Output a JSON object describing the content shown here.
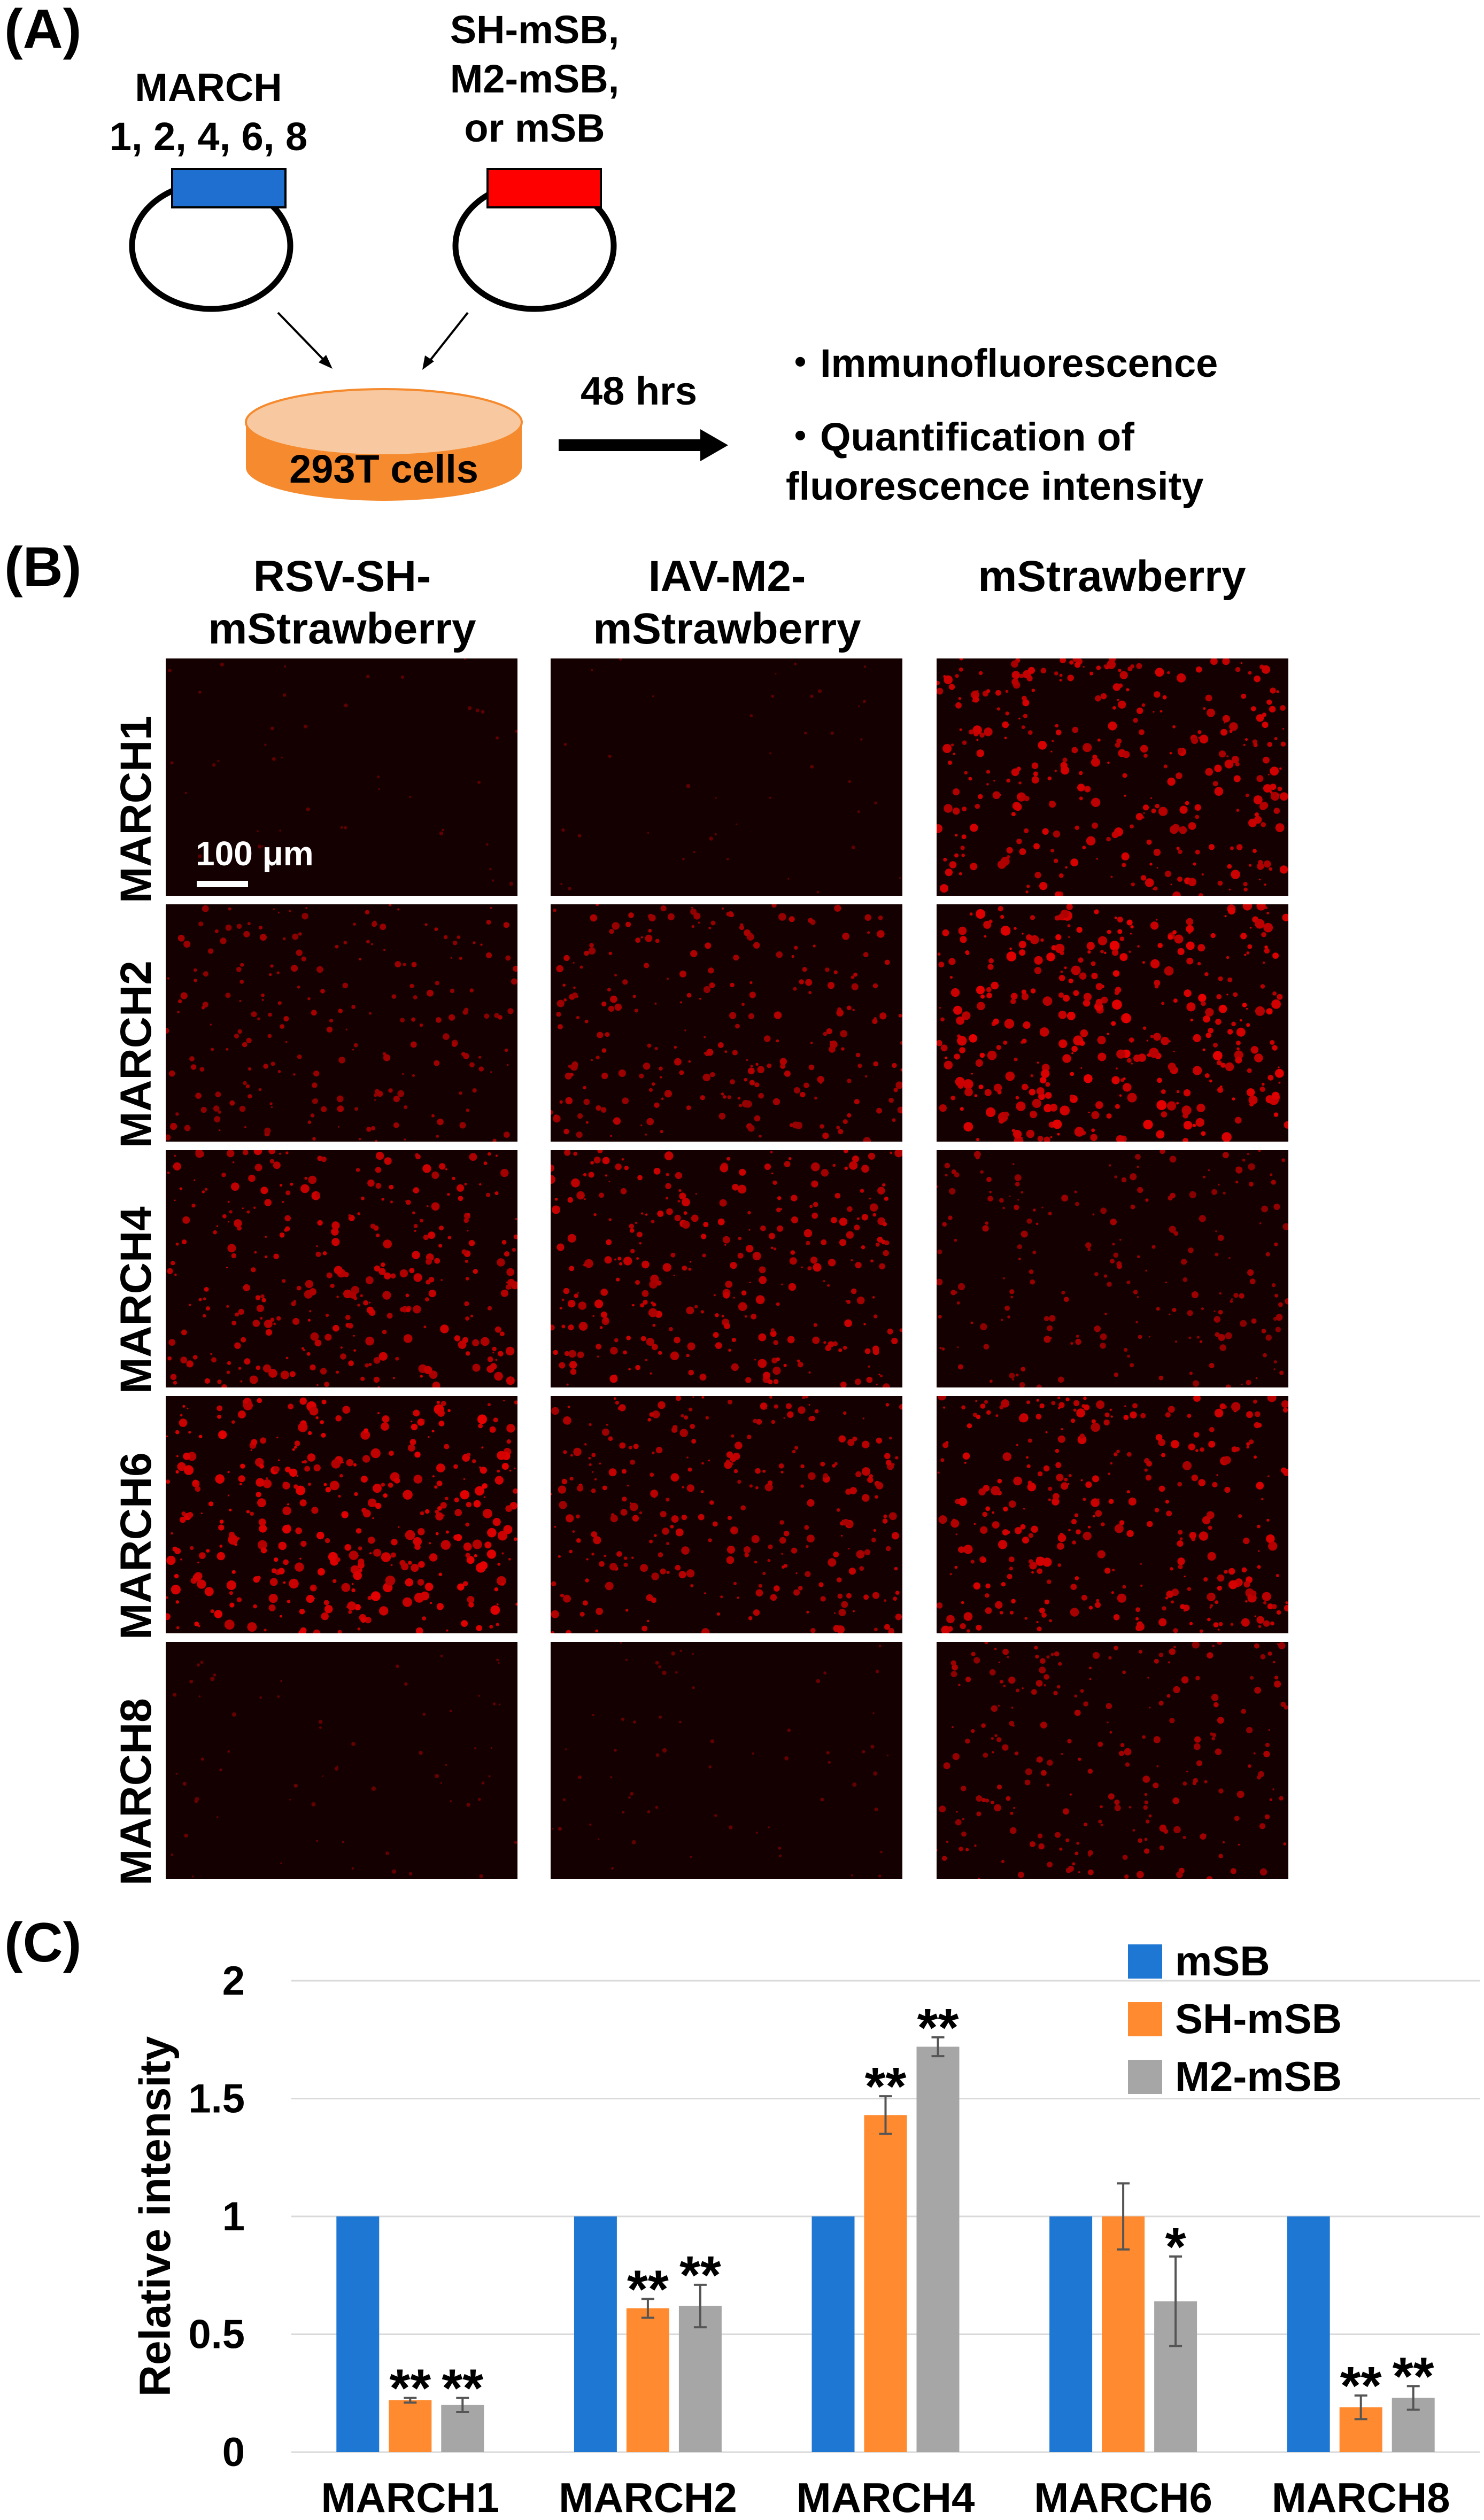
{
  "panel_a": {
    "label": "(A)",
    "plasmid1_label_line1": "MARCH",
    "plasmid1_label_line2": "1, 2, 4, 6, 8",
    "plasmid2_label_line1": "SH-mSB,",
    "plasmid2_label_line2": "M2-mSB,",
    "plasmid2_label_line3": "or mSB",
    "cells_label": "293T cells",
    "time_label": "48 hrs",
    "bullet1": "・Immunofluorescence",
    "bullet2_line1": "・Quantification of",
    "bullet2_line2": "fluorescence intensity",
    "colors": {
      "march_insert": "#1f6fd1",
      "mSB_insert": "#ff0000",
      "dish": "#f58a2e"
    }
  },
  "panel_b": {
    "label": "(B)",
    "col_headers": [
      {
        "line1": "RSV-SH-",
        "line2": "mStrawberry"
      },
      {
        "line1": "IAV-M2-",
        "line2": "mStrawberry"
      },
      {
        "line1": "",
        "line2": "mStrawberry"
      }
    ],
    "row_labels": [
      "MARCH1",
      "MARCH2",
      "MARCH4",
      "MARCH6",
      "MARCH8"
    ],
    "scale_bar": "100 μm",
    "intensity": [
      [
        0.05,
        0.05,
        0.75
      ],
      [
        0.45,
        0.55,
        0.85
      ],
      [
        0.7,
        0.7,
        0.45
      ],
      [
        0.85,
        0.65,
        0.75
      ],
      [
        0.1,
        0.1,
        0.5
      ]
    ]
  },
  "panel_c": {
    "label": "(C)"
  },
  "chart_data": {
    "type": "bar",
    "ylabel": "Relative intensity",
    "xlabel": "",
    "ylim": [
      0,
      2
    ],
    "yticks": [
      "0",
      "0.5",
      "1",
      "1.5",
      "2"
    ],
    "grid": true,
    "legend_position": "top-right",
    "categories": [
      "MARCH1",
      "MARCH2",
      "MARCH4",
      "MARCH6",
      "MARCH8"
    ],
    "series": [
      {
        "name": "mSB",
        "color": "#1f77d4",
        "values": [
          1.0,
          1.0,
          1.0,
          1.0,
          1.0
        ],
        "errors": [
          0,
          0,
          0,
          0,
          0
        ],
        "marks": [
          "",
          "",
          "",
          "",
          ""
        ]
      },
      {
        "name": "SH-mSB",
        "color": "#ff8a2f",
        "values": [
          0.22,
          0.61,
          1.43,
          1.0,
          0.19
        ],
        "errors": [
          0.01,
          0.04,
          0.08,
          0.14,
          0.05
        ],
        "marks": [
          "**",
          "**",
          "**",
          "",
          "**"
        ]
      },
      {
        "name": "M2-mSB",
        "color": "#a6a6a6",
        "values": [
          0.2,
          0.62,
          1.72,
          0.64,
          0.23
        ],
        "errors": [
          0.03,
          0.09,
          0.04,
          0.19,
          0.05
        ],
        "marks": [
          "**",
          "**",
          "**",
          "*",
          "**"
        ]
      }
    ]
  }
}
